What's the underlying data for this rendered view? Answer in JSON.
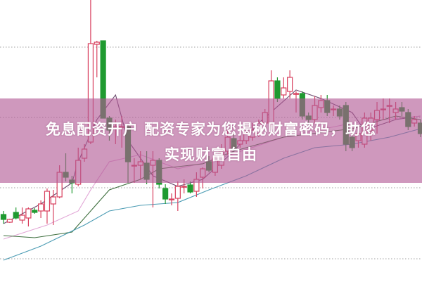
{
  "banner": {
    "line1": "免息配资开户 配资专家为您揭秘财富密码，助您",
    "line2": "实现财富自由"
  },
  "colors": {
    "up": "#d8405e",
    "down": "#1f9a30",
    "grid": "#a0a0a0",
    "band": "#b25894"
  },
  "chart_data": {
    "type": "candlestick",
    "title": "",
    "xlabel": "",
    "ylabel": "",
    "ylim": [
      0,
      40
    ],
    "grid": true,
    "grid_values": [
      33.3,
      23.3,
      13.3,
      3.2
    ],
    "candles": [
      [
        9.5,
        8.8,
        10,
        8.2
      ],
      [
        8.4,
        8.8,
        8.9,
        8.3
      ],
      [
        9.8,
        9.0,
        10.5,
        8.8
      ],
      [
        8.7,
        9.4,
        10.5,
        8.2
      ],
      [
        9.0,
        10.3,
        10.5,
        7.8
      ],
      [
        10.1,
        9.8,
        10.4,
        9.6
      ],
      [
        10,
        11,
        11.5,
        9
      ],
      [
        10,
        12.8,
        13.2,
        8.2
      ],
      [
        11,
        12,
        13,
        8
      ],
      [
        12,
        15.5,
        16.5,
        11.8
      ],
      [
        15.5,
        14.8,
        18.2,
        14.2
      ],
      [
        14.4,
        14,
        15,
        12.5
      ],
      [
        13.8,
        17.2,
        19,
        13.5
      ],
      [
        17.5,
        18.8,
        19.5,
        17
      ],
      [
        19.8,
        33.8,
        40,
        19.5
      ],
      [
        33.7,
        34,
        34.2,
        29
      ],
      [
        34.2,
        23.2,
        34.2,
        23.2
      ],
      [
        23.2,
        21.5,
        23.5,
        20
      ],
      [
        21.8,
        22,
        23,
        19.5
      ],
      [
        22,
        22,
        23.5,
        19
      ],
      [
        22,
        17,
        22.2,
        14
      ],
      [
        16.5,
        16.5,
        17.5,
        14
      ],
      [
        16.5,
        17,
        18.5,
        14.5
      ],
      [
        16.8,
        14.5,
        18.5,
        13.8
      ],
      [
        16.5,
        17.2,
        18.5,
        10.5
      ],
      [
        17.2,
        13.8,
        17.5,
        13.2
      ],
      [
        13.2,
        11.7,
        13.8,
        11
      ],
      [
        11.7,
        11.7,
        12.5,
        10.8
      ],
      [
        11.8,
        13.5,
        14.2,
        10
      ],
      [
        13.5,
        13.5,
        14.5,
        12.5
      ],
      [
        13.7,
        12.7,
        14.2,
        12.5
      ],
      [
        12.8,
        14.5,
        15.5,
        12
      ],
      [
        14.8,
        16,
        16.2,
        13.2
      ],
      [
        17,
        15.8,
        17.8,
        15.5
      ],
      [
        15.5,
        17.5,
        18,
        15
      ],
      [
        16.5,
        18.5,
        19.5,
        16
      ],
      [
        18.5,
        20.5,
        21.5,
        18
      ],
      [
        20.3,
        18.8,
        21,
        18.5
      ],
      [
        19.5,
        20,
        21,
        19
      ],
      [
        20,
        21,
        21.5,
        19.5
      ],
      [
        20.5,
        21.5,
        22.5,
        20
      ],
      [
        21,
        22.5,
        23,
        20.5
      ],
      [
        22.5,
        24,
        24.5,
        22
      ],
      [
        22.5,
        28.5,
        30,
        22
      ],
      [
        28.5,
        26,
        29,
        25.5
      ],
      [
        26.5,
        27.5,
        29,
        26
      ],
      [
        27,
        29,
        30,
        26
      ],
      [
        26.7,
        26.7,
        27,
        24
      ],
      [
        26.7,
        23.5,
        27,
        23
      ],
      [
        23.5,
        23,
        24,
        22
      ],
      [
        23,
        25,
        26.3,
        22.5
      ],
      [
        24.7,
        25.7,
        26.5,
        24
      ],
      [
        25.7,
        24,
        26.5,
        23.5
      ],
      [
        24.5,
        24.5,
        25,
        23.5
      ],
      [
        24.5,
        23.5,
        25,
        23
      ],
      [
        25,
        19.5,
        25.5,
        18.5
      ],
      [
        20.5,
        19,
        21.5,
        18.5
      ],
      [
        20,
        21,
        22,
        19
      ],
      [
        19.5,
        23.2,
        24,
        19
      ],
      [
        21.5,
        23.2,
        24,
        20
      ],
      [
        23,
        24.3,
        25.5,
        21
      ],
      [
        24.5,
        24.5,
        26,
        23
      ],
      [
        25,
        25,
        26,
        22.5
      ],
      [
        24,
        24.5,
        25.5,
        23
      ],
      [
        24.7,
        24.2,
        25.5,
        23.5
      ],
      [
        24,
        22,
        24.5,
        21.5
      ],
      [
        22.5,
        23,
        23.5,
        22
      ],
      [
        22.5,
        21,
        23,
        20.5
      ]
    ],
    "moving_averages": [
      {
        "color": "#6b4a6e",
        "points": [
          [
            0,
            8.2
          ],
          [
            6,
            11
          ],
          [
            11,
            14
          ],
          [
            12,
            17
          ],
          [
            15,
            23
          ],
          [
            18,
            26.5
          ],
          [
            20,
            20
          ],
          [
            24,
            15
          ],
          [
            28,
            13.5
          ],
          [
            32,
            14.5
          ],
          [
            37,
            18.5
          ],
          [
            41,
            22.5
          ],
          [
            47,
            27.2
          ],
          [
            51,
            26
          ],
          [
            56,
            24
          ],
          [
            58,
            21.5
          ],
          [
            63,
            23
          ],
          [
            67,
            23.5
          ]
        ]
      },
      {
        "color": "#e2a6d6",
        "points": [
          [
            0,
            6
          ],
          [
            7,
            8
          ],
          [
            12,
            10
          ],
          [
            14,
            13
          ],
          [
            17,
            17
          ],
          [
            22,
            18
          ],
          [
            28,
            16
          ],
          [
            33,
            17
          ],
          [
            45,
            20.5
          ],
          [
            56,
            22.5
          ],
          [
            67,
            23.5
          ]
        ]
      },
      {
        "color": "#3d6e3d",
        "points": [
          [
            0,
            6.5
          ],
          [
            5,
            6.2
          ],
          [
            11,
            7
          ],
          [
            14,
            10
          ],
          [
            17,
            13
          ],
          [
            22,
            14.5
          ],
          [
            25,
            16
          ],
          [
            32,
            16.7
          ],
          [
            37,
            18.5
          ],
          [
            45,
            20.5
          ],
          [
            56,
            21.7
          ],
          [
            63,
            23.5
          ],
          [
            67,
            23
          ]
        ]
      },
      {
        "color": "#4a9bb3",
        "points": [
          [
            0,
            3
          ],
          [
            6,
            5
          ],
          [
            13,
            8
          ],
          [
            17,
            10
          ],
          [
            22,
            10.8
          ],
          [
            28,
            11.2
          ],
          [
            33,
            13
          ],
          [
            39,
            15
          ],
          [
            45,
            17.5
          ],
          [
            50,
            19
          ],
          [
            56,
            19.5
          ],
          [
            62,
            20.5
          ],
          [
            67,
            21.7
          ]
        ]
      }
    ]
  }
}
